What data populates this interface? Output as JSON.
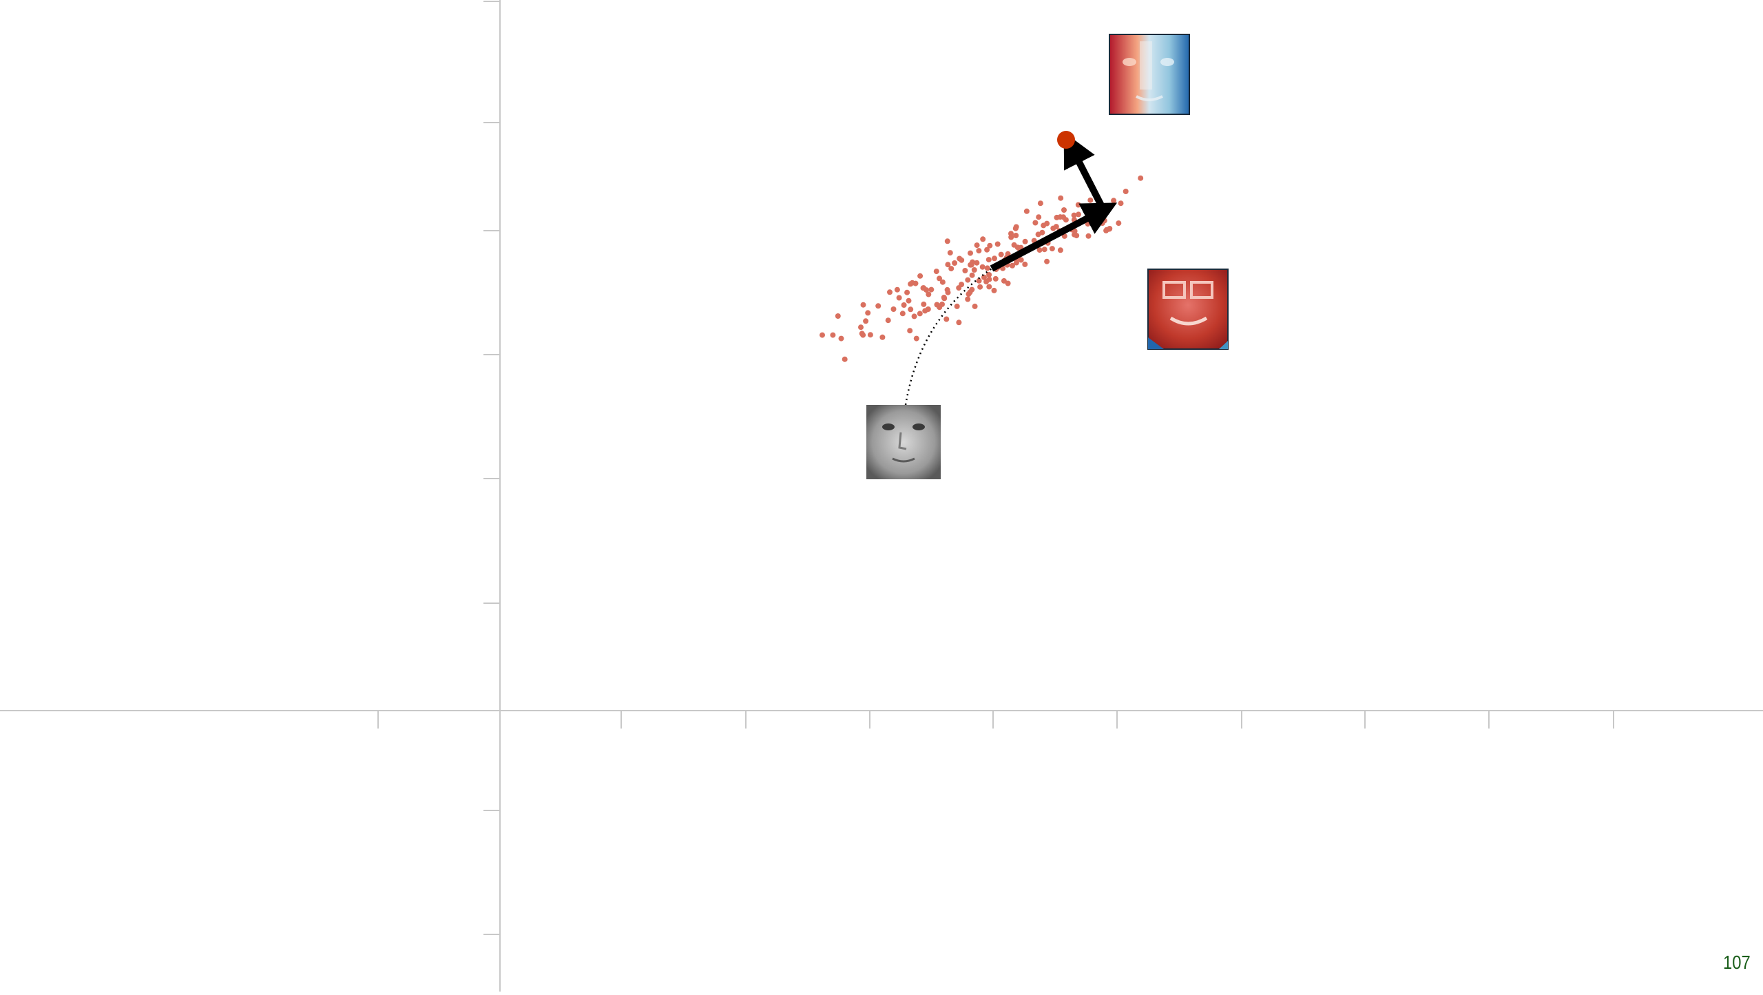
{
  "colors": {
    "background": "#ffffff",
    "axis": "#c8c8c8",
    "points": "#d9705f",
    "target_point": "#cc3300",
    "arrow": "#000000",
    "page_number": "#1a5e1a",
    "heat_red": "#b2182b",
    "heat_white": "#f7f7f7",
    "heat_blue": "#2166ac"
  },
  "figure": {
    "description_icons": [
      "mean-face-thumbnail",
      "eigenface-1-thumbnail",
      "eigenface-2-thumbnail"
    ],
    "point_cloud_count": 180,
    "path": {
      "from": "mean-face",
      "via": [
        "principal-component-1",
        "principal-component-2"
      ],
      "to": "reconstructed-face-point"
    }
  },
  "footer": {
    "page_number": "107"
  }
}
